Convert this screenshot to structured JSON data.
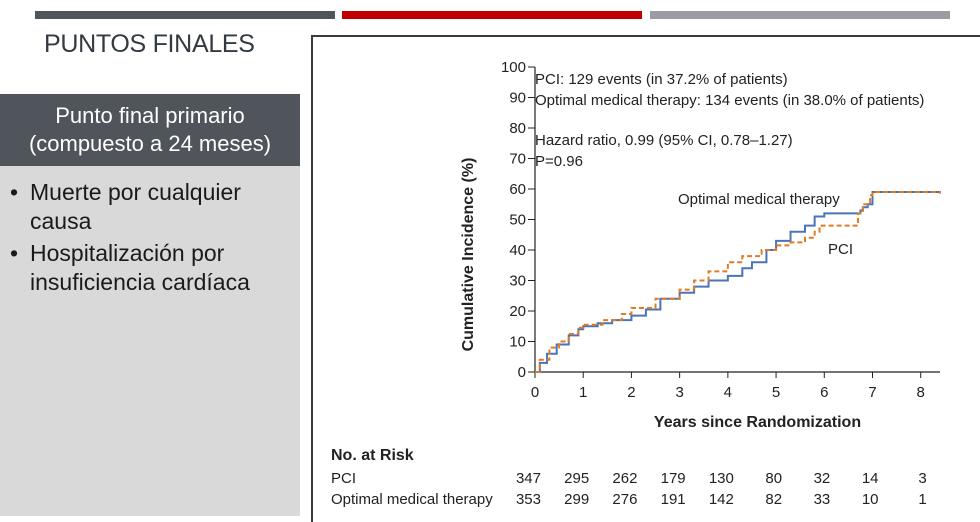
{
  "slide": {
    "title": "PUNTOS FINALES",
    "panel_header": [
      "Punto final primario",
      "(compuesto a 24 meses)"
    ],
    "bullets": [
      "Muerte por cualquier causa",
      "Hospitalización por insuficiencia cardíaca"
    ]
  },
  "colors": {
    "bar_dark": "#4f555b",
    "bar_red": "#c00000",
    "bar_gray": "#9a9ba3",
    "pci": "#e07b22",
    "omt": "#4a74b8"
  },
  "chart_data": {
    "type": "line",
    "title": "",
    "xlabel": "Years since Randomization",
    "ylabel": "Cumulative Incidence (%)",
    "xlim": [
      0,
      8.4
    ],
    "ylim": [
      0,
      100
    ],
    "x_ticks": [
      0,
      1,
      2,
      3,
      4,
      5,
      6,
      7,
      8
    ],
    "y_ticks": [
      0,
      10,
      20,
      30,
      40,
      50,
      60,
      70,
      80,
      90,
      100
    ],
    "annotations": [
      "PCI: 129 events (in 37.2% of patients)",
      "Optimal medical therapy: 134 events (in 38.0% of patients)",
      "Hazard ratio, 0.99 (95% CI, 0.78–1.27)",
      "P=0.96"
    ],
    "series": [
      {
        "name": "Optimal medical therapy",
        "style": "solid",
        "x": [
          0,
          0.1,
          0.25,
          0.45,
          0.7,
          0.9,
          1.0,
          1.3,
          1.6,
          2.0,
          2.3,
          2.6,
          3.0,
          3.3,
          3.6,
          4.0,
          4.3,
          4.5,
          4.8,
          5.0,
          5.3,
          5.6,
          5.8,
          6.0,
          6.3,
          6.6,
          6.75,
          6.8,
          6.9,
          7.0,
          7.5,
          8.0,
          8.4
        ],
        "values": [
          0,
          3,
          6,
          9,
          12,
          14,
          15,
          16,
          17,
          18.5,
          20.5,
          24,
          26,
          28,
          30,
          31.5,
          34,
          36,
          40,
          43,
          46,
          48,
          51,
          52,
          52,
          52,
          53,
          54,
          55,
          59,
          59,
          59,
          59
        ]
      },
      {
        "name": "PCI",
        "style": "dashed",
        "x": [
          0,
          0.1,
          0.3,
          0.5,
          0.7,
          0.9,
          1.0,
          1.4,
          1.8,
          2.0,
          2.5,
          3.0,
          3.3,
          3.6,
          4.0,
          4.3,
          4.7,
          5.0,
          5.3,
          5.6,
          5.8,
          5.9,
          6.2,
          6.5,
          6.7,
          6.8,
          6.95,
          7.0,
          7.5,
          8.0,
          8.4
        ],
        "values": [
          0,
          4,
          8,
          10,
          12.5,
          14.5,
          15.5,
          17,
          19,
          21,
          24,
          27,
          30,
          33,
          36,
          38,
          40,
          41.5,
          42.5,
          44,
          46,
          48,
          48,
          48,
          52,
          55,
          58,
          59,
          59,
          59,
          58.5
        ]
      }
    ],
    "series_labels": [
      "Optimal medical therapy",
      "PCI"
    ],
    "risk_table": {
      "title": "No. at Risk",
      "rows": [
        {
          "name": "PCI",
          "values": [
            347,
            295,
            262,
            179,
            130,
            80,
            32,
            14,
            3
          ]
        },
        {
          "name": "Optimal medical therapy",
          "values": [
            353,
            299,
            276,
            191,
            142,
            82,
            33,
            10,
            1
          ]
        }
      ]
    }
  }
}
